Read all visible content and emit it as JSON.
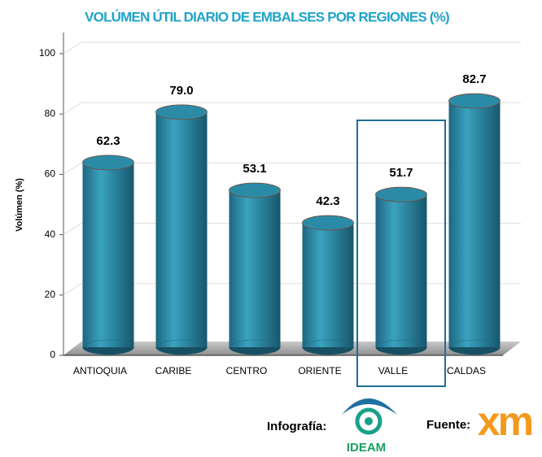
{
  "chart_data": {
    "type": "bar",
    "title": "VOLÚMEN ÚTIL DIARIO DE EMBALSES POR REGIONES (%)",
    "y_label": "Volúmen (%)",
    "categories": [
      "ANTIOQUIA",
      "CARIBE",
      "CENTRO",
      "ORIENTE",
      "VALLE",
      "CALDAS"
    ],
    "values": [
      62.3,
      79.0,
      53.1,
      42.3,
      51.7,
      82.7
    ],
    "value_labels": [
      "62.3",
      "79.0",
      "53.1",
      "42.3",
      "51.7",
      "82.7"
    ],
    "color": "#2b8ba6",
    "ylim": [
      0,
      100
    ],
    "yticks": [
      0,
      20,
      40,
      60,
      80,
      100
    ],
    "grid": true,
    "highlight": 4
  },
  "footer": {
    "infografia": "Infografía:",
    "ideam": "IDEAM",
    "fuente": "Fuente:",
    "xm": "xm"
  }
}
